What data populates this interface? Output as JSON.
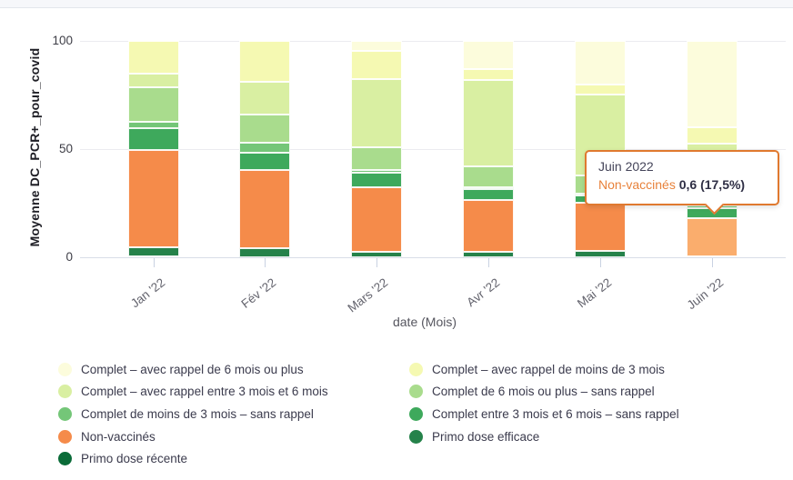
{
  "chart_data": {
    "type": "bar",
    "stacked": true,
    "stack_mode": "percent",
    "categories": [
      "Jan '22",
      "Fév '22",
      "Mars '22",
      "Avr '22",
      "Mai '22",
      "Juin '22"
    ],
    "series": [
      {
        "name": "Complet – avec rappel de 6 mois ou plus",
        "color": "#FCFCDC",
        "values": [
          0,
          0,
          4.5,
          13,
          20,
          40
        ]
      },
      {
        "name": "Complet – avec rappel de moins de 3 mois",
        "color": "#F5F9B2",
        "values": [
          15,
          19,
          13,
          5,
          5,
          7.5
        ]
      },
      {
        "name": "Complet – avec rappel entre 3 mois et 6 mois",
        "color": "#D9EFA2",
        "values": [
          6.5,
          15,
          31.5,
          40,
          37,
          16
        ]
      },
      {
        "name": "Complet de 6 mois ou plus – sans rappel",
        "color": "#A9DC8D",
        "values": [
          16,
          13,
          10.5,
          9.5,
          8.5,
          12.5
        ]
      },
      {
        "name": "Complet de moins de 3 mois – sans rappel",
        "color": "#74C678",
        "values": [
          3,
          4.5,
          1.5,
          1,
          1,
          1.5
        ]
      },
      {
        "name": "Complet entre 3 mois et 6 mois – sans rappel",
        "color": "#3EA95C",
        "values": [
          10,
          8,
          6.5,
          5,
          3.5,
          4.5
        ]
      },
      {
        "name": "Non-vaccinés",
        "color": "#F58B4A",
        "values": [
          45,
          36.5,
          30,
          24,
          22,
          17.5
        ]
      },
      {
        "name": "Primo dose efficace",
        "color": "#25824A",
        "values": [
          4,
          4,
          2.5,
          2.5,
          3,
          0.5
        ]
      },
      {
        "name": "Primo dose récente",
        "color": "#0A6B38",
        "values": [
          0.5,
          0,
          0,
          0,
          0,
          0
        ]
      }
    ],
    "xlabel": "date (Mois)",
    "ylabel": "Moyenne DC_PCR+_pour_covid",
    "y_ticks": [
      "0",
      "50",
      "100"
    ],
    "ylim": [
      0,
      100
    ],
    "grid": "horizontal",
    "legend_position": "bottom"
  },
  "tooltip": {
    "title": "Juin 2022",
    "series_label": "Non-vaccinés",
    "value": "0,6 (17,5%)",
    "accent_color": "#E0792F"
  },
  "highlight": {
    "category": "Juin '22",
    "series": "Non-vaccinés",
    "hover_color": "#FAAD6D"
  }
}
